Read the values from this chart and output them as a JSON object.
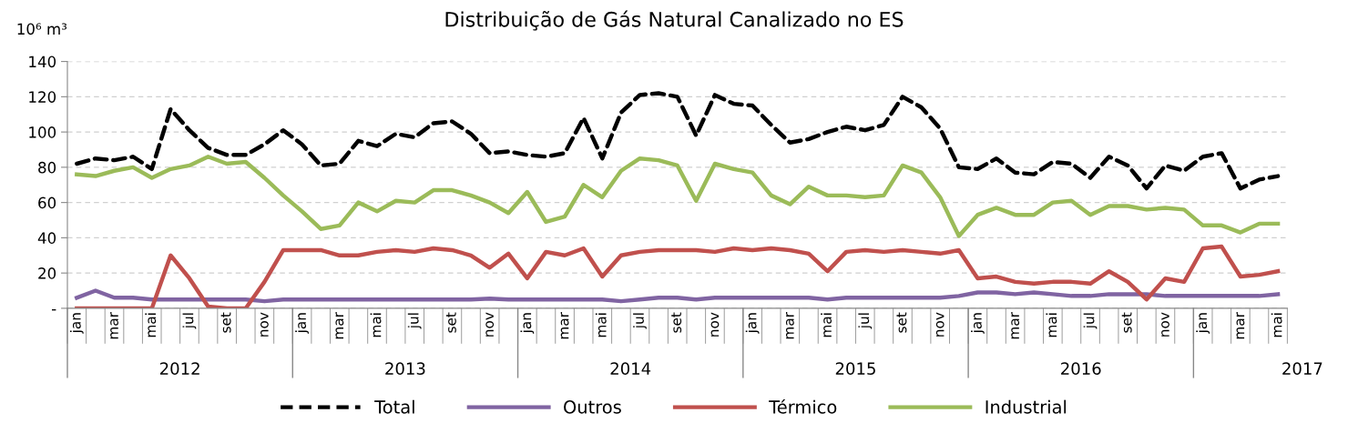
{
  "chart_data": {
    "type": "line",
    "title": "Distribuição de Gás Natural Canalizado no ES",
    "ylabel": "10⁶ m³",
    "categories": [
      "jan",
      null,
      "mar",
      null,
      "mai",
      null,
      "jul",
      null,
      "set",
      null,
      "nov",
      null,
      "jan",
      null,
      "mar",
      null,
      "mai",
      null,
      "jul",
      null,
      "set",
      null,
      "nov",
      null,
      "jan",
      null,
      "mar",
      null,
      "mai",
      null,
      "jul",
      null,
      "set",
      null,
      "nov",
      null,
      "jan",
      null,
      "mar",
      null,
      "mai",
      null,
      "jul",
      null,
      "set",
      null,
      "nov",
      null,
      "jan",
      null,
      "mar",
      null,
      "mai",
      null,
      "jul",
      null,
      "set",
      null,
      "nov",
      null,
      "jan",
      null,
      "mar",
      null,
      "mai"
    ],
    "annotations": [
      "2012",
      "2013",
      "2014",
      "2015",
      "2016",
      "2017"
    ],
    "ylim": [
      0,
      140
    ],
    "yticks": [
      {
        "value": 0,
        "label": "-"
      },
      20,
      40,
      60,
      80,
      100,
      120,
      140
    ],
    "grid": "y",
    "legend": "bottom",
    "series": [
      {
        "name": "Total",
        "color": "#000000",
        "line_style": "dashed",
        "values": [
          82,
          85,
          84,
          86,
          79,
          113,
          101,
          91,
          87,
          87,
          93,
          101,
          93,
          81,
          82,
          95,
          92,
          99,
          97,
          105,
          106,
          99,
          88,
          89,
          87,
          86,
          88,
          108,
          85,
          111,
          121,
          122,
          120,
          98,
          121,
          116,
          115,
          104,
          94,
          96,
          100,
          103,
          101,
          104,
          120,
          114,
          102,
          80,
          79,
          85,
          77,
          76,
          83,
          82,
          74,
          86,
          81,
          68,
          81,
          78,
          86,
          88,
          68,
          73,
          75
        ]
      },
      {
        "name": "Outros",
        "color": "#8064a2",
        "line_style": "solid",
        "values": [
          6,
          10,
          6,
          6,
          5,
          5,
          5,
          5,
          5,
          5,
          4,
          5,
          5,
          5,
          5,
          5,
          5,
          5,
          5,
          5,
          5,
          5,
          5.5,
          5,
          5,
          5,
          5,
          5,
          5,
          4,
          5,
          6,
          6,
          5,
          6,
          6,
          6,
          6,
          6,
          6,
          5,
          6,
          6,
          6,
          6,
          6,
          6,
          7,
          9,
          9,
          8,
          9,
          8,
          7,
          7,
          8,
          8,
          8,
          7,
          7,
          7,
          7,
          7,
          7,
          8
        ]
      },
      {
        "name": "Térmico",
        "color": "#c0504d",
        "line_style": "solid",
        "values": [
          0,
          0,
          0,
          0,
          0,
          30,
          17,
          1,
          0,
          0,
          15,
          33,
          33,
          33,
          30,
          30,
          32,
          33,
          32,
          34,
          33,
          30,
          23,
          31,
          17,
          32,
          30,
          34,
          18,
          30,
          32,
          33,
          33,
          33,
          32,
          34,
          33,
          34,
          33,
          31,
          21,
          32,
          33,
          32,
          33,
          32,
          31,
          33,
          17,
          18,
          15,
          14,
          15,
          15,
          14,
          21,
          15,
          5,
          17,
          15,
          34,
          35,
          18,
          19,
          21
        ]
      },
      {
        "name": "Industrial",
        "color": "#9bbb59",
        "line_style": "solid",
        "values": [
          76,
          75,
          78,
          80,
          74,
          79,
          81,
          86,
          82,
          83,
          74,
          64,
          55,
          45,
          47,
          60,
          55,
          61,
          60,
          67,
          67,
          64,
          60,
          54,
          66,
          49,
          52,
          70,
          63,
          78,
          85,
          84,
          81,
          61,
          82,
          79,
          77,
          64,
          59,
          69,
          64,
          64,
          63,
          64,
          81,
          77,
          63,
          41,
          53,
          57,
          53,
          53,
          60,
          61,
          53,
          58,
          58,
          56,
          57,
          56,
          47,
          47,
          43,
          48,
          48
        ]
      }
    ]
  }
}
